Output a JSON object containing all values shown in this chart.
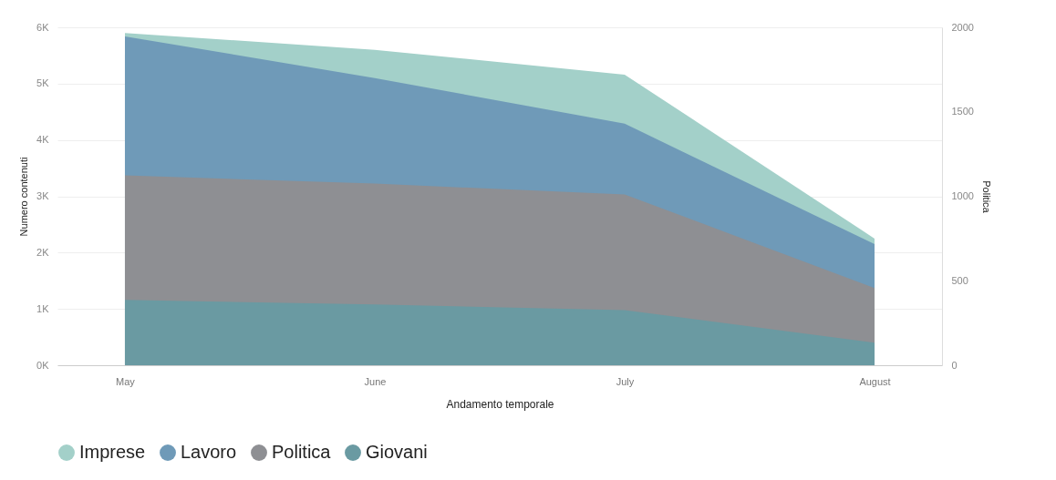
{
  "chart_data": {
    "type": "area",
    "xlabel": "Andamento temporale",
    "ylabel": "Numero contenuti",
    "y2label": "Politica",
    "categories": [
      "May",
      "June",
      "July",
      "August"
    ],
    "series": [
      {
        "name": "Imprese",
        "color": "#a3d0c9",
        "values": [
          5900,
          5600,
          5160,
          2250
        ]
      },
      {
        "name": "Lavoro",
        "color": "#6f9ab8",
        "values": [
          5840,
          5100,
          4290,
          2150
        ]
      },
      {
        "name": "Politica",
        "color": "#8e8f93",
        "axis": "y2",
        "values": [
          1124,
          1075,
          1011,
          457
        ]
      },
      {
        "name": "Giovani",
        "color": "#6a9aa2",
        "values": [
          1160,
          1080,
          980,
          400
        ]
      }
    ],
    "ylim": [
      0,
      6000
    ],
    "yticks": [
      {
        "value": 0,
        "label": "0K"
      },
      {
        "value": 1000,
        "label": "1K"
      },
      {
        "value": 2000,
        "label": "2K"
      },
      {
        "value": 3000,
        "label": "3K"
      },
      {
        "value": 4000,
        "label": "4K"
      },
      {
        "value": 5000,
        "label": "5K"
      },
      {
        "value": 6000,
        "label": "6K"
      }
    ],
    "y2lim": [
      0,
      2000
    ],
    "y2ticks": [
      0,
      500,
      1000,
      1500,
      2000
    ],
    "grid": "y",
    "legend": "bottom"
  }
}
